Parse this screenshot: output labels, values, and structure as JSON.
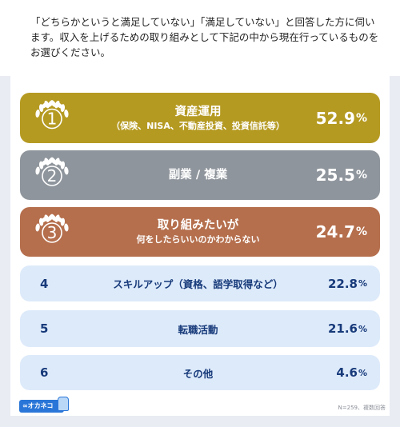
{
  "question": "「どちらかというと満足していない」「満足していない」と回答した方に伺います。収入を上げるための取り組みとして下記の中から現在行っているものをお選びください。",
  "colors": {
    "gold": "#b59a22",
    "silver": "#8f959c",
    "bronze": "#b56f4d",
    "plain_bg": "#ddeafa",
    "plain_text": "#173a7a"
  },
  "chart_data": {
    "type": "table",
    "unit": "%",
    "rows": [
      {
        "rank": "1",
        "label_lines": [
          "資産運用",
          "（保険、NISA、不動産投資、投資信託等）"
        ],
        "value": 52.9,
        "value_text": "52.9",
        "unit": "%"
      },
      {
        "rank": "2",
        "label_lines": [
          "副業 / 複業"
        ],
        "value": 25.5,
        "value_text": "25.5",
        "unit": "%"
      },
      {
        "rank": "3",
        "label_lines": [
          "取り組みたいが",
          "何をしたらいいのかわからない"
        ],
        "value": 24.7,
        "value_text": "24.7",
        "unit": "%"
      },
      {
        "rank": "4",
        "label_lines": [
          "スキルアップ（資格、語学取得など）"
        ],
        "value": 22.8,
        "value_text": "22.8",
        "unit": "%"
      },
      {
        "rank": "5",
        "label_lines": [
          "転職活動"
        ],
        "value": 21.6,
        "value_text": "21.6",
        "unit": "%"
      },
      {
        "rank": "6",
        "label_lines": [
          "その他"
        ],
        "value": 4.6,
        "value_text": "4.6",
        "unit": "%"
      }
    ]
  },
  "logo_text": "∞オカネコ",
  "note": "N=259、複数回答"
}
